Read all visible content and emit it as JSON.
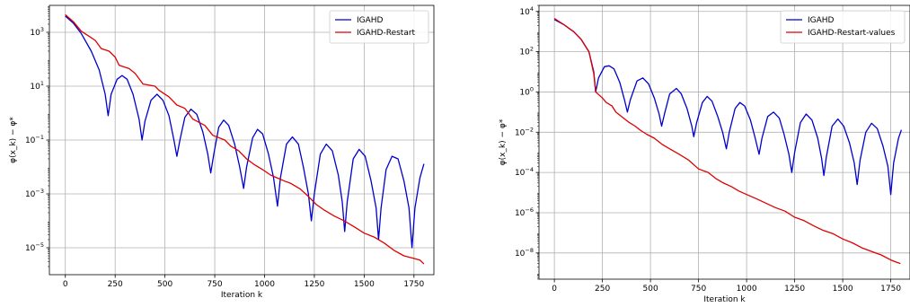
{
  "chart_data": [
    {
      "type": "line",
      "title": "",
      "xlabel": "Iteration k",
      "ylabel": "φ(x_k) − φ*",
      "xlim": [
        -80,
        1850
      ],
      "ylim": [
        1e-06,
        10000.0
      ],
      "yscale": "log",
      "grid": true,
      "legend_position": "top-right",
      "xticks": [
        0,
        250,
        500,
        750,
        1000,
        1250,
        1500,
        1750
      ],
      "xtick_labels": [
        "0",
        "250",
        "500",
        "750",
        "1000",
        "1250",
        "1500",
        "1750"
      ],
      "yticks": [
        1e-05,
        0.001,
        0.1,
        10.0,
        1000.0
      ],
      "ytick_labels": [
        {
          "base": "10",
          "exp": "−5"
        },
        {
          "base": "10",
          "exp": "−3"
        },
        {
          "base": "10",
          "exp": "−1"
        },
        {
          "base": "10",
          "exp": "1"
        },
        {
          "base": "10",
          "exp": "3"
        }
      ],
      "series": [
        {
          "name": "IGAHD",
          "color": "#0000cc",
          "points": [
            [
              0,
              4000
            ],
            [
              40,
              2200
            ],
            [
              80,
              900
            ],
            [
              130,
              200
            ],
            [
              170,
              40
            ],
            [
              200,
              5
            ],
            [
              215,
              0.8
            ],
            [
              230,
              5
            ],
            [
              260,
              18
            ],
            [
              285,
              25
            ],
            [
              310,
              18
            ],
            [
              340,
              5
            ],
            [
              370,
              0.6
            ],
            [
              385,
              0.1
            ],
            [
              400,
              0.5
            ],
            [
              430,
              3
            ],
            [
              460,
              5
            ],
            [
              490,
              3
            ],
            [
              520,
              0.8
            ],
            [
              545,
              0.1
            ],
            [
              560,
              0.025
            ],
            [
              575,
              0.1
            ],
            [
              600,
              0.7
            ],
            [
              630,
              1.4
            ],
            [
              660,
              0.9
            ],
            [
              690,
              0.2
            ],
            [
              715,
              0.03
            ],
            [
              730,
              0.006
            ],
            [
              745,
              0.03
            ],
            [
              770,
              0.3
            ],
            [
              795,
              0.55
            ],
            [
              820,
              0.35
            ],
            [
              850,
              0.07
            ],
            [
              875,
              0.01
            ],
            [
              895,
              0.0016
            ],
            [
              910,
              0.01
            ],
            [
              940,
              0.12
            ],
            [
              965,
              0.25
            ],
            [
              990,
              0.17
            ],
            [
              1020,
              0.03
            ],
            [
              1045,
              0.004
            ],
            [
              1065,
              0.00035
            ],
            [
              1080,
              0.004
            ],
            [
              1110,
              0.07
            ],
            [
              1140,
              0.13
            ],
            [
              1170,
              0.07
            ],
            [
              1195,
              0.01
            ],
            [
              1220,
              0.001
            ],
            [
              1235,
              0.0001
            ],
            [
              1250,
              0.001
            ],
            [
              1280,
              0.03
            ],
            [
              1310,
              0.07
            ],
            [
              1340,
              0.04
            ],
            [
              1370,
              0.005
            ],
            [
              1390,
              0.0005
            ],
            [
              1402,
              4e-05
            ],
            [
              1415,
              0.0005
            ],
            [
              1445,
              0.02
            ],
            [
              1475,
              0.045
            ],
            [
              1505,
              0.025
            ],
            [
              1535,
              0.003
            ],
            [
              1560,
              0.0003
            ],
            [
              1572,
              2e-05
            ],
            [
              1585,
              0.0003
            ],
            [
              1610,
              0.008
            ],
            [
              1640,
              0.025
            ],
            [
              1670,
              0.02
            ],
            [
              1700,
              0.003
            ],
            [
              1725,
              0.0003
            ],
            [
              1740,
              1e-05
            ],
            [
              1755,
              0.0003
            ],
            [
              1780,
              0.004
            ],
            [
              1800,
              0.013
            ]
          ]
        },
        {
          "name": "IGAHD-Restart",
          "color": "#dd0000",
          "points": [
            [
              0,
              4500
            ],
            [
              40,
              2500
            ],
            [
              80,
              1100
            ],
            [
              120,
              700
            ],
            [
              150,
              500
            ],
            [
              180,
              250
            ],
            [
              220,
              200
            ],
            [
              250,
              120
            ],
            [
              270,
              60
            ],
            [
              320,
              45
            ],
            [
              350,
              30
            ],
            [
              390,
              12
            ],
            [
              450,
              10
            ],
            [
              470,
              7
            ],
            [
              520,
              4
            ],
            [
              560,
              2
            ],
            [
              600,
              1.5
            ],
            [
              640,
              0.6
            ],
            [
              700,
              0.35
            ],
            [
              740,
              0.15
            ],
            [
              800,
              0.1
            ],
            [
              830,
              0.06
            ],
            [
              870,
              0.04
            ],
            [
              910,
              0.02
            ],
            [
              950,
              0.012
            ],
            [
              990,
              0.008
            ],
            [
              1030,
              0.005
            ],
            [
              1060,
              0.004
            ],
            [
              1100,
              0.003
            ],
            [
              1130,
              0.0025
            ],
            [
              1180,
              0.0015
            ],
            [
              1220,
              0.0008
            ],
            [
              1260,
              0.0004
            ],
            [
              1300,
              0.00025
            ],
            [
              1350,
              0.00015
            ],
            [
              1400,
              0.0001
            ],
            [
              1450,
              6e-05
            ],
            [
              1500,
              3.5e-05
            ],
            [
              1550,
              2.5e-05
            ],
            [
              1600,
              1.5e-05
            ],
            [
              1650,
              8e-06
            ],
            [
              1700,
              5e-06
            ],
            [
              1750,
              4e-06
            ],
            [
              1780,
              3.5e-06
            ],
            [
              1800,
              2.5e-06
            ]
          ]
        }
      ]
    },
    {
      "type": "line",
      "title": "",
      "xlabel": "Iteration k",
      "ylabel": "φ(x_k) − φ*",
      "xlim": [
        -80,
        1850
      ],
      "ylim": [
        5e-10,
        20000.0
      ],
      "yscale": "log",
      "grid": true,
      "legend_position": "top-right",
      "xticks": [
        0,
        250,
        500,
        750,
        1000,
        1250,
        1500,
        1750
      ],
      "xtick_labels": [
        "0",
        "250",
        "500",
        "750",
        "1000",
        "1250",
        "1500",
        "1750"
      ],
      "yticks": [
        1e-08,
        1e-06,
        0.0001,
        0.01,
        1.0,
        100.0,
        10000.0
      ],
      "ytick_labels": [
        {
          "base": "10",
          "exp": "−8"
        },
        {
          "base": "10",
          "exp": "−6"
        },
        {
          "base": "10",
          "exp": "−4"
        },
        {
          "base": "10",
          "exp": "−2"
        },
        {
          "base": "10",
          "exp": "0"
        },
        {
          "base": "10",
          "exp": "2"
        },
        {
          "base": "10",
          "exp": "4"
        }
      ],
      "series": [
        {
          "name": "IGAHD",
          "color": "#0000cc",
          "points": [
            [
              0,
              4000
            ],
            [
              50,
              2200
            ],
            [
              100,
              1000
            ],
            [
              140,
              400
            ],
            [
              180,
              100
            ],
            [
              205,
              10
            ],
            [
              215,
              1
            ],
            [
              230,
              5
            ],
            [
              260,
              18
            ],
            [
              285,
              20
            ],
            [
              310,
              14
            ],
            [
              340,
              3
            ],
            [
              365,
              0.4
            ],
            [
              380,
              0.1
            ],
            [
              395,
              0.4
            ],
            [
              430,
              3.5
            ],
            [
              460,
              5
            ],
            [
              490,
              2.5
            ],
            [
              520,
              0.5
            ],
            [
              545,
              0.08
            ],
            [
              558,
              0.02
            ],
            [
              575,
              0.1
            ],
            [
              600,
              0.8
            ],
            [
              635,
              1.5
            ],
            [
              660,
              0.8
            ],
            [
              690,
              0.15
            ],
            [
              715,
              0.02
            ],
            [
              725,
              0.006
            ],
            [
              740,
              0.03
            ],
            [
              770,
              0.3
            ],
            [
              795,
              0.6
            ],
            [
              820,
              0.35
            ],
            [
              850,
              0.06
            ],
            [
              875,
              0.01
            ],
            [
              895,
              0.0015
            ],
            [
              910,
              0.01
            ],
            [
              940,
              0.15
            ],
            [
              965,
              0.3
            ],
            [
              990,
              0.2
            ],
            [
              1020,
              0.04
            ],
            [
              1045,
              0.005
            ],
            [
              1065,
              0.0008
            ],
            [
              1080,
              0.005
            ],
            [
              1110,
              0.06
            ],
            [
              1140,
              0.1
            ],
            [
              1170,
              0.05
            ],
            [
              1195,
              0.008
            ],
            [
              1220,
              0.0008
            ],
            [
              1235,
              0.0001
            ],
            [
              1250,
              0.001
            ],
            [
              1280,
              0.03
            ],
            [
              1310,
              0.08
            ],
            [
              1340,
              0.04
            ],
            [
              1370,
              0.005
            ],
            [
              1390,
              0.0005
            ],
            [
              1402,
              7e-05
            ],
            [
              1415,
              0.0006
            ],
            [
              1445,
              0.02
            ],
            [
              1475,
              0.045
            ],
            [
              1505,
              0.02
            ],
            [
              1535,
              0.003
            ],
            [
              1560,
              0.0003
            ],
            [
              1575,
              2.5e-05
            ],
            [
              1590,
              0.0004
            ],
            [
              1620,
              0.01
            ],
            [
              1650,
              0.028
            ],
            [
              1680,
              0.015
            ],
            [
              1710,
              0.002
            ],
            [
              1735,
              0.0002
            ],
            [
              1750,
              8e-06
            ],
            [
              1765,
              0.0003
            ],
            [
              1790,
              0.005
            ],
            [
              1805,
              0.013
            ]
          ]
        },
        {
          "name": "IGAHD-Restart-values",
          "color": "#dd0000",
          "points": [
            [
              0,
              4500
            ],
            [
              50,
              2200
            ],
            [
              100,
              1000
            ],
            [
              140,
              400
            ],
            [
              180,
              100
            ],
            [
              205,
              8
            ],
            [
              215,
              1
            ],
            [
              250,
              0.5
            ],
            [
              270,
              0.3
            ],
            [
              300,
              0.2
            ],
            [
              320,
              0.1
            ],
            [
              340,
              0.07
            ],
            [
              360,
              0.05
            ],
            [
              390,
              0.03
            ],
            [
              420,
              0.02
            ],
            [
              450,
              0.012
            ],
            [
              480,
              0.008
            ],
            [
              520,
              0.005
            ],
            [
              560,
              0.0025
            ],
            [
              600,
              0.0015
            ],
            [
              650,
              0.0008
            ],
            [
              700,
              0.0004
            ],
            [
              750,
              0.00015
            ],
            [
              800,
              0.0001
            ],
            [
              840,
              5e-05
            ],
            [
              880,
              3e-05
            ],
            [
              920,
              2e-05
            ],
            [
              960,
              1.2e-05
            ],
            [
              1000,
              8e-06
            ],
            [
              1050,
              5e-06
            ],
            [
              1100,
              3e-06
            ],
            [
              1150,
              1.8e-06
            ],
            [
              1200,
              1.2e-06
            ],
            [
              1250,
              6e-07
            ],
            [
              1300,
              4e-07
            ],
            [
              1350,
              2.2e-07
            ],
            [
              1400,
              1.3e-07
            ],
            [
              1450,
              9e-08
            ],
            [
              1500,
              5e-08
            ],
            [
              1550,
              3.2e-08
            ],
            [
              1600,
              1.8e-08
            ],
            [
              1650,
              1.2e-08
            ],
            [
              1700,
              8e-09
            ],
            [
              1750,
              4.5e-09
            ],
            [
              1780,
              3.5e-09
            ],
            [
              1800,
              3e-09
            ]
          ]
        }
      ]
    }
  ]
}
